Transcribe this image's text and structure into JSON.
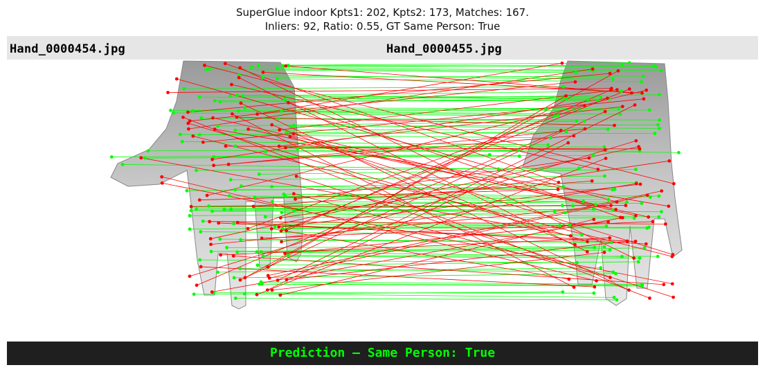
{
  "title": {
    "line1": "SuperGlue indoor Kpts1: 202, Kpts2: 173, Matches: 167.",
    "line2": "Inliers: 92, Ratio: 0.55, GT Same Person: True"
  },
  "images": {
    "left_filename": "Hand_0000454.jpg",
    "right_filename": "Hand_0000455.jpg"
  },
  "prediction": {
    "text": "Prediction — Same Person: True",
    "color": "#00ff00"
  },
  "colors": {
    "inlier": "#00ff00",
    "outlier": "#ff0000",
    "header_bg": "#e6e6e6",
    "footer_bg": "#1f1f1f"
  },
  "icons": {
    "keypoint": "keypoint-dot-icon"
  }
}
